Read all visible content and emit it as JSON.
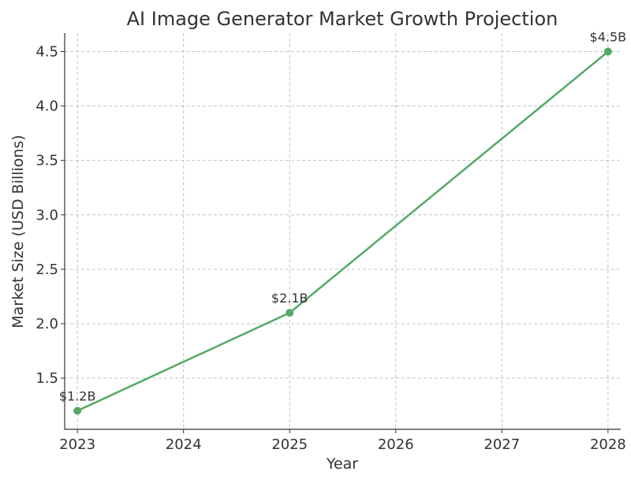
{
  "chart_data": {
    "type": "line",
    "title": "AI Image Generator Market Growth Projection",
    "xlabel": "Year",
    "ylabel": "Market Size (USD Billions)",
    "x_ticks": [
      "2023",
      "2024",
      "2025",
      "2026",
      "2027",
      "2028"
    ],
    "y_ticks": [
      "1.5",
      "2.0",
      "2.5",
      "3.0",
      "3.5",
      "4.0",
      "4.5"
    ],
    "xlim": [
      2022.88,
      2028.12
    ],
    "ylim": [
      1.03,
      4.67
    ],
    "grid": true,
    "series": [
      {
        "x": [
          2023,
          2025,
          2028
        ],
        "y": [
          1.2,
          2.1,
          4.5
        ],
        "color": "#55a868",
        "data_labels": [
          "$1.2B",
          "$2.1B",
          "$4.5B"
        ]
      }
    ]
  }
}
